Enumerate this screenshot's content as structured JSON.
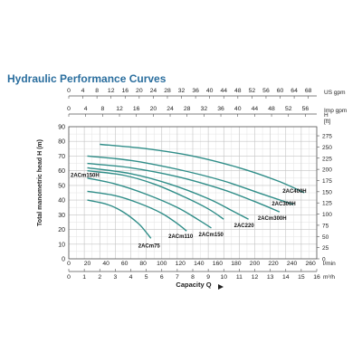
{
  "chart_data": {
    "type": "line",
    "title": "Hydraulic Performance Curves",
    "xlabel": "Capacity Q",
    "ylabel": "Total manometric head H (m)",
    "x_unit": "m³/h",
    "x_range": [
      0,
      16
    ],
    "x_ticks": [
      0,
      1,
      2,
      3,
      4,
      5,
      6,
      7,
      8,
      9,
      10,
      11,
      12,
      13,
      14,
      15,
      16
    ],
    "y_range": [
      0,
      90
    ],
    "y_ticks": [
      0,
      10,
      20,
      30,
      40,
      50,
      60,
      70,
      80,
      90
    ],
    "top_axes": [
      {
        "unit": "US gpm",
        "max": 70.4,
        "ticks": [
          0,
          4,
          8,
          12,
          16,
          20,
          24,
          28,
          32,
          36,
          40,
          44,
          48,
          52,
          56,
          60,
          64,
          68
        ]
      },
      {
        "unit": "Imp gpm",
        "max": 58.7,
        "ticks": [
          0,
          4,
          8,
          12,
          16,
          20,
          24,
          28,
          32,
          36,
          40,
          44,
          48,
          52,
          56
        ]
      }
    ],
    "bottom_secondary_axis": {
      "unit": "l/min",
      "max": 266.7,
      "ticks": [
        0,
        20,
        40,
        60,
        80,
        100,
        120,
        140,
        160,
        180,
        200,
        220,
        240,
        260
      ]
    },
    "right_axis": {
      "unit": "ft",
      "max": 295.3,
      "ticks": [
        0,
        25,
        50,
        75,
        100,
        125,
        150,
        175,
        200,
        225,
        250,
        275
      ]
    },
    "grid": true,
    "legend": "labels on curves",
    "series": [
      {
        "name": "2ACm75",
        "color": "#2f8d88",
        "x": [
          1.2,
          2.5,
          3.5,
          4.5,
          5.0,
          5.3
        ],
        "y": [
          40,
          37,
          32,
          24,
          18,
          14
        ]
      },
      {
        "name": "2ACm110",
        "color": "#2f8d88",
        "x": [
          1.2,
          3.0,
          4.5,
          6.0,
          7.0,
          7.6
        ],
        "y": [
          46,
          43,
          38,
          31,
          24,
          19
        ]
      },
      {
        "name": "2ACm150",
        "color": "#2f8d88",
        "x": [
          1.2,
          3.0,
          5.0,
          7.0,
          8.3,
          9.2
        ],
        "y": [
          55,
          51,
          44,
          35,
          27,
          21
        ]
      },
      {
        "name": "2ACm150H",
        "color": "#2f8d88",
        "x": [
          1.2,
          3.5,
          5.5,
          7.5,
          9.0,
          10.0
        ],
        "y": [
          60,
          57,
          51,
          42,
          34,
          27
        ]
      },
      {
        "name": "2AC220",
        "color": "#2f8d88",
        "x": [
          1.2,
          4.0,
          6.5,
          9.0,
          10.5,
          11.6
        ],
        "y": [
          62,
          58,
          51,
          41,
          33,
          27
        ]
      },
      {
        "name": "2ACm300H",
        "color": "#2f8d88",
        "x": [
          1.2,
          4.0,
          7.0,
          10.0,
          12.0,
          13.6
        ],
        "y": [
          65,
          62,
          56,
          47,
          39,
          32
        ]
      },
      {
        "name": "2AC300H",
        "color": "#2f8d88",
        "x": [
          1.2,
          4.0,
          7.0,
          10.0,
          12.5,
          14.5
        ],
        "y": [
          70,
          67,
          61,
          53,
          44,
          37
        ]
      },
      {
        "name": "2AC400H",
        "color": "#2f8d88",
        "x": [
          2.0,
          5.0,
          8.0,
          11.0,
          13.5,
          15.2
        ],
        "y": [
          78,
          75,
          70,
          62,
          53,
          45
        ]
      }
    ]
  }
}
